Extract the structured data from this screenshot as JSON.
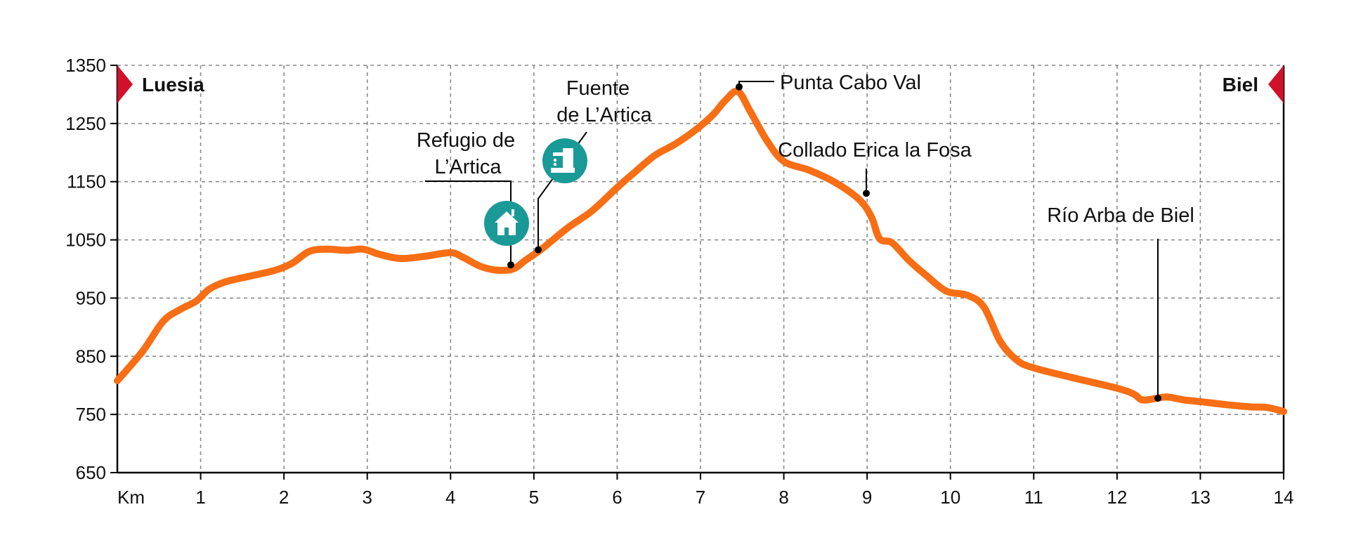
{
  "chart_data": {
    "type": "area",
    "title": "",
    "xlabel": "Km",
    "ylabel": "",
    "xlim": [
      0,
      14
    ],
    "ylim": [
      650,
      1350
    ],
    "x_ticks": [
      "1",
      "2",
      "3",
      "4",
      "5",
      "6",
      "7",
      "8",
      "9",
      "10",
      "11",
      "12",
      "13",
      "14"
    ],
    "y_ticks": [
      "650",
      "750",
      "850",
      "950",
      "1050",
      "1150",
      "1250",
      "1350"
    ],
    "grid": true,
    "colors": {
      "line": "#f76e15",
      "grid": "#8a8a8a",
      "marker": "#d0112b",
      "icon": "#1a9a96"
    },
    "start_label": "Luesia",
    "end_label": "Biel",
    "series": [
      {
        "x": [
          0,
          0.3,
          0.55,
          0.75,
          0.95,
          1.1,
          1.3,
          1.6,
          1.9,
          2.1,
          2.3,
          2.5,
          2.75,
          2.95,
          3.15,
          3.4,
          3.7,
          4.0,
          4.15,
          4.35,
          4.55,
          4.75,
          4.9,
          5.1,
          5.4,
          5.7,
          6.0,
          6.2,
          6.45,
          6.7,
          6.95,
          7.15,
          7.3,
          7.45,
          7.6,
          7.8,
          8.0,
          8.3,
          8.6,
          8.9,
          9.05,
          9.15,
          9.3,
          9.5,
          9.7,
          9.95,
          10.2,
          10.4,
          10.6,
          10.8,
          11.0,
          11.5,
          12.0,
          12.2,
          12.3,
          12.45,
          12.6,
          12.8,
          13.0,
          13.3,
          13.6,
          13.8,
          14.0
        ],
        "y": [
          808,
          858,
          910,
          930,
          945,
          965,
          978,
          988,
          998,
          1010,
          1030,
          1034,
          1032,
          1034,
          1025,
          1018,
          1022,
          1028,
          1020,
          1005,
          998,
          1000,
          1015,
          1035,
          1070,
          1100,
          1140,
          1165,
          1195,
          1215,
          1240,
          1265,
          1290,
          1305,
          1270,
          1220,
          1185,
          1170,
          1150,
          1120,
          1090,
          1052,
          1045,
          1015,
          990,
          962,
          955,
          935,
          875,
          843,
          830,
          812,
          795,
          785,
          775,
          777,
          780,
          775,
          772,
          767,
          763,
          762,
          755
        ]
      }
    ],
    "annotations": [
      {
        "text": [
          "Refugio de",
          "L’Artica"
        ],
        "x": 4.65,
        "y": 1007,
        "icon": "house-icon"
      },
      {
        "text": [
          "Fuente",
          "de L’Artica"
        ],
        "x": 4.97,
        "y": 1033,
        "icon": "water-fountain-icon"
      },
      {
        "text": [
          "Punta Cabo Val"
        ],
        "x": 7.32,
        "y": 1313
      },
      {
        "text": [
          "Collado Erica la Fosa"
        ],
        "x": 8.85,
        "y": 1130
      },
      {
        "text": [
          "Río Arba de Biel"
        ],
        "x": 12.32,
        "y": 778
      }
    ]
  }
}
